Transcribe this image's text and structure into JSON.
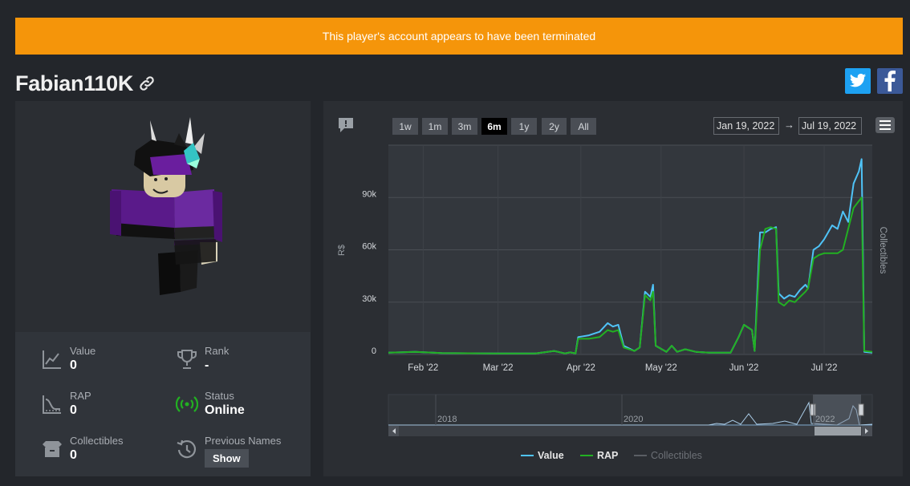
{
  "banner": {
    "text": "This player's account appears to have been terminated"
  },
  "player": {
    "name": "Fabian110K"
  },
  "stats": {
    "value": {
      "label": "Value",
      "value": "0"
    },
    "rank": {
      "label": "Rank",
      "value": "-"
    },
    "rap": {
      "label": "RAP",
      "value": "0"
    },
    "status": {
      "label": "Status",
      "value": "Online"
    },
    "collectibles": {
      "label": "Collectibles",
      "value": "0"
    },
    "previous_names": {
      "label": "Previous Names",
      "button": "Show"
    }
  },
  "chart_controls": {
    "ranges": [
      "1w",
      "1m",
      "3m",
      "6m",
      "1y",
      "2y",
      "All"
    ],
    "active_range": "6m",
    "from": "Jan 19, 2022",
    "to": "Jul 19, 2022"
  },
  "colors": {
    "value": "#4fc3f7",
    "rap": "#22b022",
    "collectibles": "#5a5e64",
    "banner": "#f5950a",
    "status_online": "#22b022"
  },
  "icons": [
    "link-icon",
    "twitter-icon",
    "facebook-icon",
    "message-icon",
    "menu-icon",
    "chart-line-icon",
    "trophy-icon",
    "rap-curve-icon",
    "signal-icon",
    "box-icon",
    "history-icon"
  ],
  "chart_data": {
    "type": "line",
    "ylabel": "R$",
    "y2label": "Collectibles",
    "ylim": [
      0,
      120000
    ],
    "yticks": [
      "0",
      "30k",
      "60k",
      "90k"
    ],
    "ytick_values": [
      0,
      30000,
      60000,
      90000
    ],
    "xticks": [
      "Feb '22",
      "Mar '22",
      "Apr '22",
      "May '22",
      "Jun '22",
      "Jul '22"
    ],
    "xtick_days": [
      13,
      41,
      72,
      102,
      133,
      163
    ],
    "xlim_days": [
      0,
      181
    ],
    "series": [
      {
        "name": "Value",
        "points": [
          [
            0,
            1000
          ],
          [
            10,
            1500
          ],
          [
            20,
            800
          ],
          [
            40,
            600
          ],
          [
            55,
            600
          ],
          [
            62,
            2000
          ],
          [
            66,
            600
          ],
          [
            68,
            1200
          ],
          [
            70,
            600
          ],
          [
            71,
            10000
          ],
          [
            75,
            11000
          ],
          [
            79,
            13000
          ],
          [
            82,
            18000
          ],
          [
            84,
            16000
          ],
          [
            86,
            17000
          ],
          [
            88,
            5000
          ],
          [
            92,
            2000
          ],
          [
            94,
            4000
          ],
          [
            96,
            36000
          ],
          [
            98,
            33000
          ],
          [
            99,
            40000
          ],
          [
            100,
            5000
          ],
          [
            104,
            1500
          ],
          [
            106,
            5000
          ],
          [
            108,
            1500
          ],
          [
            111,
            3000
          ],
          [
            115,
            1500
          ],
          [
            120,
            1000
          ],
          [
            128,
            1000
          ],
          [
            131,
            10000
          ],
          [
            133,
            17000
          ],
          [
            136,
            14000
          ],
          [
            137,
            2000
          ],
          [
            139,
            70000
          ],
          [
            141,
            70000
          ],
          [
            143,
            72000
          ],
          [
            145,
            73000
          ],
          [
            146,
            35000
          ],
          [
            148,
            32000
          ],
          [
            150,
            34000
          ],
          [
            152,
            33000
          ],
          [
            154,
            37000
          ],
          [
            156,
            40000
          ],
          [
            157,
            38000
          ],
          [
            159,
            60000
          ],
          [
            161,
            62000
          ],
          [
            163,
            66000
          ],
          [
            166,
            74000
          ],
          [
            168,
            72000
          ],
          [
            170,
            82000
          ],
          [
            172,
            76000
          ],
          [
            174,
            98000
          ],
          [
            176,
            105000
          ],
          [
            177,
            112000
          ],
          [
            178,
            1500
          ],
          [
            181,
            1000
          ]
        ]
      },
      {
        "name": "RAP",
        "points": [
          [
            0,
            1000
          ],
          [
            10,
            1500
          ],
          [
            20,
            800
          ],
          [
            40,
            600
          ],
          [
            55,
            600
          ],
          [
            62,
            2000
          ],
          [
            66,
            600
          ],
          [
            68,
            1200
          ],
          [
            70,
            600
          ],
          [
            71,
            9000
          ],
          [
            75,
            9000
          ],
          [
            79,
            10000
          ],
          [
            82,
            14000
          ],
          [
            84,
            13000
          ],
          [
            86,
            14000
          ],
          [
            88,
            4000
          ],
          [
            92,
            2000
          ],
          [
            94,
            4000
          ],
          [
            96,
            34000
          ],
          [
            98,
            31000
          ],
          [
            99,
            36000
          ],
          [
            100,
            5000
          ],
          [
            104,
            1500
          ],
          [
            106,
            5000
          ],
          [
            108,
            1500
          ],
          [
            111,
            3000
          ],
          [
            115,
            1500
          ],
          [
            120,
            1000
          ],
          [
            128,
            1000
          ],
          [
            131,
            10000
          ],
          [
            133,
            17000
          ],
          [
            136,
            14000
          ],
          [
            137,
            2000
          ],
          [
            139,
            60000
          ],
          [
            141,
            72000
          ],
          [
            143,
            73000
          ],
          [
            145,
            72000
          ],
          [
            146,
            30000
          ],
          [
            148,
            28000
          ],
          [
            150,
            31000
          ],
          [
            152,
            30000
          ],
          [
            154,
            33000
          ],
          [
            156,
            36000
          ],
          [
            157,
            38000
          ],
          [
            159,
            55000
          ],
          [
            161,
            57000
          ],
          [
            163,
            58000
          ],
          [
            166,
            58000
          ],
          [
            168,
            58000
          ],
          [
            170,
            60000
          ],
          [
            172,
            72000
          ],
          [
            174,
            84000
          ],
          [
            176,
            88000
          ],
          [
            177,
            90000
          ],
          [
            178,
            2000
          ],
          [
            181,
            1500
          ]
        ]
      },
      {
        "name": "Collectibles",
        "points": []
      }
    ],
    "navigator": {
      "labels": [
        "2018",
        "2020",
        "2022"
      ]
    },
    "legend": [
      "Value",
      "RAP",
      "Collectibles"
    ]
  }
}
